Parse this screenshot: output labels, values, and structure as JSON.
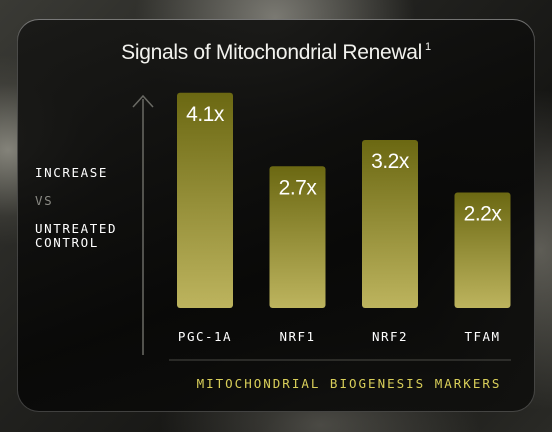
{
  "title": "Signals of Mitochondrial Renewal",
  "title_footnote": "1",
  "y_label": {
    "line1": "INCREASE",
    "line2": "VS",
    "line3": "UNTREATED",
    "line4": "CONTROL"
  },
  "colors": {
    "bar_top": "#6b6812",
    "bar_bottom": "#bdb45e",
    "accent_text": "#d9cf5a",
    "axis": "#6a6a64"
  },
  "chart_data": {
    "type": "bar",
    "title": "Signals of Mitochondrial Renewal",
    "xlabel": "MITOCHONDRIAL BIOGENESIS MARKERS",
    "ylabel": "INCREASE VS UNTREATED CONTROL",
    "categories": [
      "PGC-1A",
      "NRF1",
      "NRF2",
      "TFAM"
    ],
    "values": [
      4.1,
      2.7,
      3.2,
      2.2
    ],
    "value_labels": [
      "4.1x",
      "2.7x",
      "3.2x",
      "2.2x"
    ],
    "ylim": [
      0,
      4.5
    ],
    "grid": false,
    "legend": "none"
  }
}
